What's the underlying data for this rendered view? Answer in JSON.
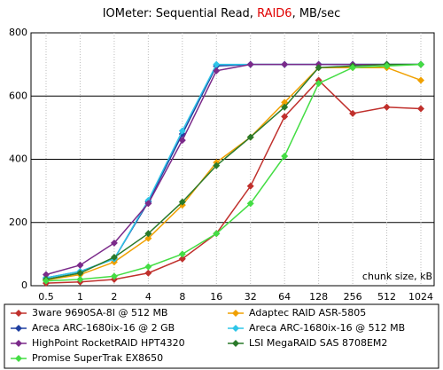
{
  "chart_data": {
    "type": "line",
    "title": [
      {
        "text": "IOMeter: Sequential Read, ",
        "color": "#000000"
      },
      {
        "text": "RAID6",
        "color": "#e00000"
      },
      {
        "text": ", MB/sec",
        "color": "#000000"
      }
    ],
    "x_label": "chunk size, kB",
    "categories": [
      "0.5",
      "1",
      "2",
      "4",
      "8",
      "16",
      "32",
      "64",
      "128",
      "256",
      "512",
      "1024"
    ],
    "ylim": [
      0,
      800
    ],
    "yticks": [
      0,
      200,
      400,
      600,
      800
    ],
    "grid": true,
    "series": [
      {
        "name": "3ware 9690SA-8I @ 512 MB",
        "color": "#c0302c",
        "values": [
          8,
          12,
          20,
          40,
          85,
          165,
          315,
          535,
          650,
          545,
          565,
          560
        ]
      },
      {
        "name": "Adaptec RAID ASR-5805",
        "color": "#f0a000",
        "values": [
          18,
          35,
          75,
          150,
          255,
          390,
          470,
          580,
          690,
          690,
          690,
          650
        ]
      },
      {
        "name": "Areca ARC-1680ix-16 @ 2 GB",
        "color": "#1f3fa0",
        "values": [
          25,
          45,
          85,
          265,
          480,
          695,
          700,
          700,
          700,
          700,
          700,
          700
        ]
      },
      {
        "name": "Areca ARC-1680ix-16 @ 512 MB",
        "color": "#2ec5e8",
        "values": [
          25,
          45,
          85,
          270,
          490,
          700,
          700,
          700,
          700,
          700,
          700,
          700
        ]
      },
      {
        "name": "HighPoint RocketRAID HPT4320",
        "color": "#7b2a8a",
        "values": [
          35,
          65,
          135,
          260,
          460,
          680,
          700,
          700,
          700,
          700,
          700,
          700
        ]
      },
      {
        "name": "LSI MegaRAID SAS 8708EM2",
        "color": "#2a7a2a",
        "values": [
          20,
          40,
          90,
          165,
          265,
          380,
          470,
          565,
          690,
          695,
          700,
          700
        ]
      },
      {
        "name": "Promise SuperTrak EX8650",
        "color": "#44dd44",
        "values": [
          15,
          20,
          30,
          60,
          100,
          165,
          260,
          410,
          640,
          690,
          695,
          700
        ]
      }
    ]
  }
}
